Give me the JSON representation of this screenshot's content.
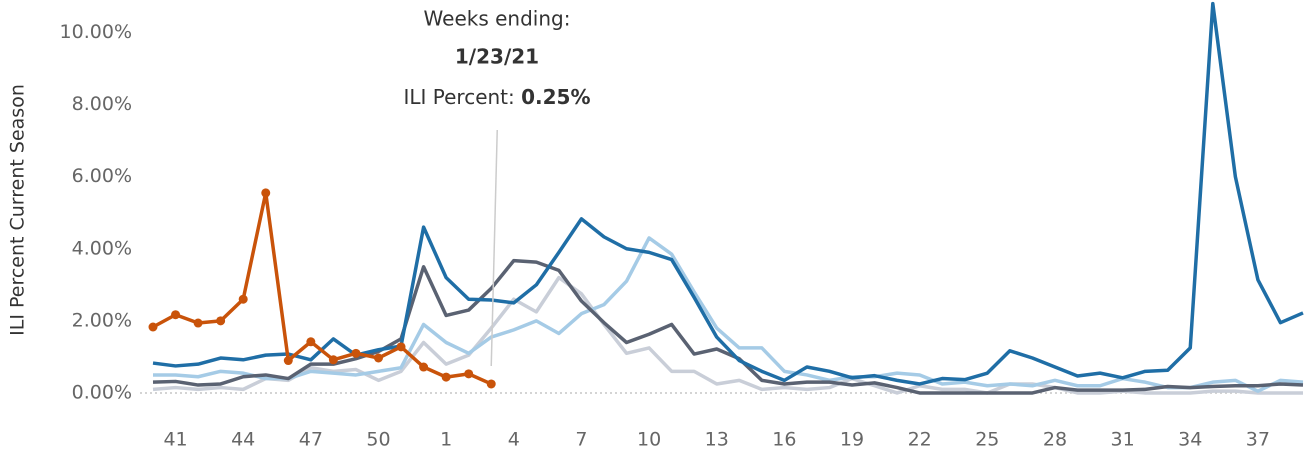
{
  "chart_data": {
    "type": "line",
    "y_label": "ILI Percent Current Season",
    "categories": [
      null,
      41,
      null,
      null,
      44,
      null,
      null,
      47,
      null,
      null,
      50,
      null,
      null,
      1,
      null,
      null,
      4,
      null,
      null,
      7,
      null,
      null,
      10,
      null,
      null,
      13,
      null,
      null,
      16,
      null,
      null,
      19,
      null,
      null,
      22,
      null,
      null,
      25,
      null,
      null,
      28,
      null,
      null,
      31,
      null,
      null,
      34,
      null,
      null,
      37,
      null,
      null
    ],
    "ylim": [
      -0.5,
      10.9
    ],
    "yticks": [
      {
        "value": 0,
        "label": "0.00%"
      },
      {
        "value": 2,
        "label": "2.00%"
      },
      {
        "value": 4,
        "label": "4.00%"
      },
      {
        "value": 6,
        "label": "6.00%"
      },
      {
        "value": 8,
        "label": "8.00%"
      },
      {
        "value": 10,
        "label": "10.00%"
      }
    ],
    "zero_line": true,
    "series": [
      {
        "color": "#c9ced8",
        "values": [
          0.1,
          0.15,
          0.1,
          0.15,
          0.1,
          0.4,
          0.35,
          0.7,
          0.6,
          0.65,
          0.35,
          0.6,
          1.4,
          0.8,
          1.05,
          1.8,
          2.6,
          2.25,
          3.2,
          2.75,
          1.9,
          1.1,
          1.25,
          0.6,
          0.6,
          0.25,
          0.35,
          0.1,
          0.15,
          0.1,
          0.15,
          0.4,
          0.2,
          0.0,
          0.2,
          0.1,
          0.1,
          0.0,
          0.25,
          0.25,
          0.15,
          0.0,
          0.0,
          0.05,
          0.0,
          0.0,
          0.0,
          0.05,
          0.05,
          0.0,
          0.0,
          0.0
        ]
      },
      {
        "color": "#a5cbe6",
        "values": [
          0.5,
          0.5,
          0.45,
          0.6,
          0.55,
          0.4,
          0.4,
          0.6,
          0.55,
          0.5,
          0.6,
          0.7,
          1.9,
          1.4,
          1.1,
          1.55,
          1.75,
          2.0,
          1.65,
          2.2,
          2.45,
          3.1,
          4.3,
          3.85,
          2.8,
          1.8,
          1.25,
          1.25,
          0.6,
          0.5,
          0.35,
          0.45,
          0.45,
          0.55,
          0.5,
          0.25,
          0.3,
          0.2,
          0.25,
          0.2,
          0.35,
          0.2,
          0.2,
          0.4,
          0.3,
          0.15,
          0.15,
          0.3,
          0.35,
          0.05,
          0.35,
          0.3
        ]
      },
      {
        "color": "#5a6272",
        "values": [
          0.3,
          0.32,
          0.22,
          0.25,
          0.45,
          0.5,
          0.4,
          0.8,
          0.8,
          0.95,
          1.15,
          1.5,
          3.5,
          2.15,
          2.3,
          2.9,
          3.67,
          3.63,
          3.4,
          2.55,
          1.95,
          1.4,
          1.63,
          1.9,
          1.08,
          1.22,
          0.95,
          0.35,
          0.25,
          0.3,
          0.3,
          0.22,
          0.28,
          0.15,
          0.0,
          0.0,
          0.0,
          0.0,
          0.0,
          0.0,
          0.15,
          0.08,
          0.08,
          0.08,
          0.1,
          0.18,
          0.15,
          0.18,
          0.2,
          0.2,
          0.25,
          0.22
        ]
      },
      {
        "color": "#1f6ea6",
        "values": [
          0.83,
          0.75,
          0.8,
          0.97,
          0.92,
          1.05,
          1.08,
          0.92,
          1.5,
          1.05,
          1.2,
          1.3,
          4.6,
          3.2,
          2.6,
          2.58,
          2.5,
          3.0,
          3.9,
          4.83,
          4.33,
          4.0,
          3.9,
          3.7,
          2.65,
          1.55,
          0.9,
          0.6,
          0.35,
          0.72,
          0.6,
          0.42,
          0.48,
          0.35,
          0.25,
          0.4,
          0.37,
          0.55,
          1.17,
          0.97,
          0.72,
          0.47,
          0.55,
          0.42,
          0.6,
          0.63,
          1.25,
          10.8,
          6.0,
          3.14,
          1.95,
          2.22
        ]
      },
      {
        "color": "#c9530a",
        "markers": true,
        "values": [
          1.83,
          2.17,
          1.94,
          2.0,
          2.6,
          5.55,
          0.9,
          1.42,
          0.92,
          1.1,
          0.97,
          1.28,
          0.72,
          0.44,
          0.53,
          0.25,
          null,
          null,
          null,
          null,
          null,
          null,
          null,
          null,
          null,
          null,
          null,
          null,
          null,
          null,
          null,
          null,
          null,
          null,
          null,
          null,
          null,
          null,
          null,
          null,
          null,
          null,
          null,
          null,
          null,
          null,
          null,
          null,
          null,
          null,
          null,
          null
        ]
      }
    ],
    "tooltip": {
      "heading": "Weeks ending:",
      "date": "1/23/21",
      "label": "ILI Percent:",
      "value_label": "0.25%",
      "series": 4,
      "index": 15
    }
  }
}
